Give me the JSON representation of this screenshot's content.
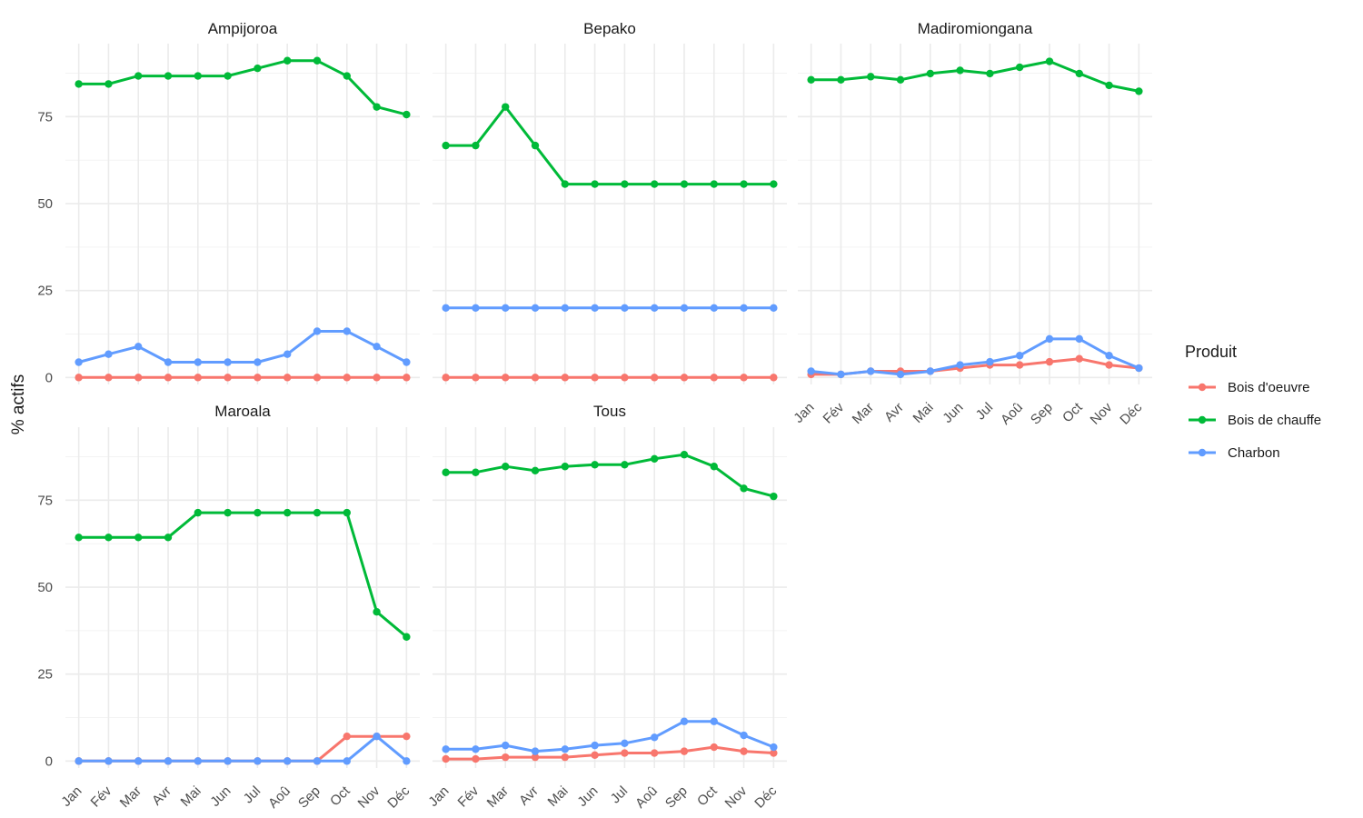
{
  "chart_data": {
    "type": "line",
    "ylabel": "% actifs",
    "xlabel": "",
    "ylim": [
      -2,
      96
    ],
    "yticks": [
      0,
      25,
      50,
      75
    ],
    "categories": [
      "Jan",
      "Fév",
      "Mar",
      "Avr",
      "Mai",
      "Jun",
      "Jul",
      "Aoû",
      "Sep",
      "Oct",
      "Nov",
      "Déc"
    ],
    "legend": {
      "title": "Produit",
      "position": "right",
      "entries": [
        {
          "name": "Bois d'oeuvre",
          "color": "#F8766D"
        },
        {
          "name": "Bois de chauffe",
          "color": "#00BA38"
        },
        {
          "name": "Charbon",
          "color": "#619CFF"
        }
      ]
    },
    "panels": [
      {
        "title": "Ampijoroa",
        "series": [
          {
            "name": "Bois d'oeuvre",
            "values": [
              0,
              0,
              0,
              0,
              0,
              0,
              0,
              0,
              0,
              0,
              0,
              0
            ]
          },
          {
            "name": "Bois de chauffe",
            "values": [
              84.4,
              84.4,
              86.7,
              86.7,
              86.7,
              86.7,
              88.9,
              91.1,
              91.1,
              86.7,
              77.8,
              75.6
            ]
          },
          {
            "name": "Charbon",
            "values": [
              4.4,
              6.7,
              8.9,
              4.4,
              4.4,
              4.4,
              4.4,
              6.7,
              13.3,
              13.3,
              8.9,
              4.4
            ]
          }
        ]
      },
      {
        "title": "Bepako",
        "series": [
          {
            "name": "Bois d'oeuvre",
            "values": [
              0,
              0,
              0,
              0,
              0,
              0,
              0,
              0,
              0,
              0,
              0,
              0
            ]
          },
          {
            "name": "Bois de chauffe",
            "values": [
              66.7,
              66.7,
              77.8,
              66.7,
              55.6,
              55.6,
              55.6,
              55.6,
              55.6,
              55.6,
              55.6,
              55.6
            ]
          },
          {
            "name": "Charbon",
            "values": [
              20,
              20,
              20,
              20,
              20,
              20,
              20,
              20,
              20,
              20,
              20,
              20
            ]
          }
        ]
      },
      {
        "title": "Madiromiongana",
        "series": [
          {
            "name": "Bois d'oeuvre",
            "values": [
              0.9,
              0.9,
              1.8,
              1.8,
              1.8,
              2.7,
              3.6,
              3.6,
              4.5,
              5.4,
              3.6,
              2.7
            ]
          },
          {
            "name": "Bois de chauffe",
            "values": [
              85.6,
              85.6,
              86.5,
              85.6,
              87.4,
              88.3,
              87.4,
              89.2,
              90.9,
              87.4,
              84.0,
              82.3
            ]
          },
          {
            "name": "Charbon",
            "values": [
              1.8,
              0.9,
              1.8,
              0.9,
              1.8,
              3.6,
              4.5,
              6.3,
              11.1,
              11.1,
              6.3,
              2.7
            ]
          }
        ]
      },
      {
        "title": "Maroala",
        "series": [
          {
            "name": "Bois d'oeuvre",
            "values": [
              0,
              0,
              0,
              0,
              0,
              0,
              0,
              0,
              0,
              7.1,
              7.1,
              7.1
            ]
          },
          {
            "name": "Bois de chauffe",
            "values": [
              64.3,
              64.3,
              64.3,
              64.3,
              71.4,
              71.4,
              71.4,
              71.4,
              71.4,
              71.4,
              42.9,
              35.7
            ]
          },
          {
            "name": "Charbon",
            "values": [
              0,
              0,
              0,
              0,
              0,
              0,
              0,
              0,
              0,
              0,
              7.1,
              0
            ]
          }
        ]
      },
      {
        "title": "Tous",
        "series": [
          {
            "name": "Bois d'oeuvre",
            "values": [
              0.6,
              0.6,
              1.1,
              1.1,
              1.1,
              1.7,
              2.3,
              2.3,
              2.8,
              4.0,
              2.8,
              2.3
            ]
          },
          {
            "name": "Bois de chauffe",
            "values": [
              83.0,
              83.0,
              84.7,
              83.5,
              84.7,
              85.2,
              85.2,
              86.9,
              88.1,
              84.7,
              78.4,
              76.1
            ]
          },
          {
            "name": "Charbon",
            "values": [
              3.4,
              3.4,
              4.5,
              2.8,
              3.4,
              4.5,
              5.1,
              6.8,
              11.4,
              11.4,
              7.4,
              4.0
            ]
          }
        ]
      }
    ]
  }
}
